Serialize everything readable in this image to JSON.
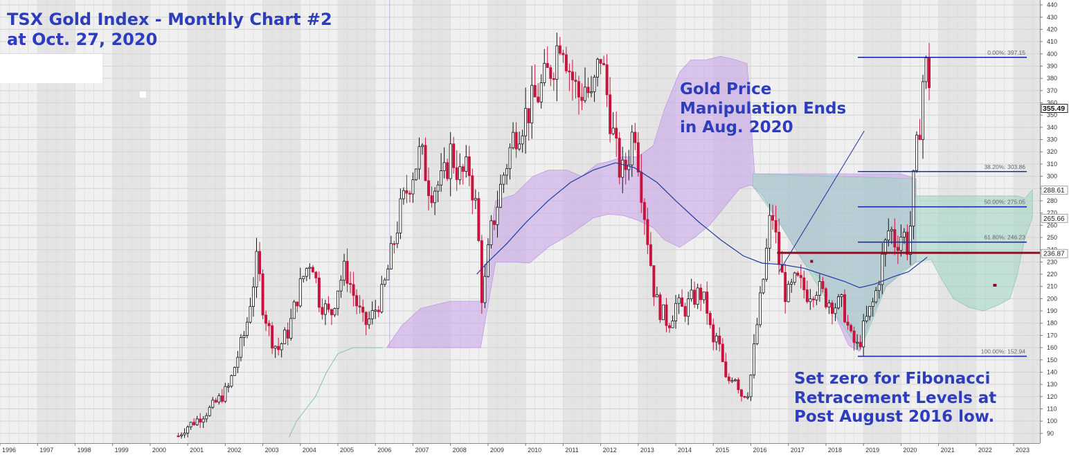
{
  "annotations": {
    "title_lines": [
      "TSX Gold Index - Monthly Chart #2",
      "at Oct. 27, 2020"
    ],
    "gold_lines": [
      "Gold Price",
      "Manipulation Ends",
      "in Aug. 2020"
    ],
    "fib_lines": [
      "Set zero for Fibonacci",
      "Retracement Levels at",
      "Post August 2016 low."
    ]
  },
  "colors": {
    "up": "#111111",
    "down": "#c8133c",
    "cloud_purple": "#c9a9ea",
    "cloud_green": "#9fd4c2",
    "ma": "#1f3aa0",
    "fib": "#1a2ea8",
    "support": "#8b0d1e",
    "annotation": "#2e3dbd"
  },
  "chart_data": {
    "type": "candlestick",
    "title": "TSX Gold Index - Monthly Chart #2 at Oct. 27, 2020",
    "y_axis_side": "right",
    "ylim": [
      82,
      444
    ],
    "y_ticks": [
      90,
      100,
      110,
      120,
      130,
      140,
      150,
      160,
      170,
      180,
      190,
      200,
      210,
      220,
      230,
      240,
      250,
      260,
      270,
      280,
      290,
      300,
      310,
      320,
      330,
      340,
      350,
      360,
      370,
      380,
      390,
      400,
      410,
      420,
      430,
      440
    ],
    "x_axis_range": [
      1996.0,
      2023.7
    ],
    "x_ticks": [
      "1996",
      "1997",
      "1998",
      "1999",
      "2000",
      "2001",
      "2002",
      "2003",
      "2004",
      "2005",
      "2006",
      "2007",
      "2008",
      "2009",
      "2010",
      "2011",
      "2012",
      "2013",
      "2014",
      "2015",
      "2016",
      "2017",
      "2018",
      "2019",
      "2020",
      "2021",
      "2022",
      "2023"
    ],
    "last_price": "355.49",
    "price_labels": [
      {
        "value": 288.61,
        "text": "288.61"
      },
      {
        "value": 265.66,
        "text": "265.66"
      },
      {
        "value": 236.87,
        "text": "236.87"
      }
    ],
    "support_level": 237.5,
    "fibonacci": {
      "x_start": 2018.85,
      "x_end": 2023.35,
      "levels": [
        {
          "value": 397.15,
          "label": "0.00%: 397.15"
        },
        {
          "value": 303.86,
          "label": "38.20%: 303.86"
        },
        {
          "value": 275.05,
          "label": "50.00%: 275.05"
        },
        {
          "value": 246.23,
          "label": "61.80%: 246.23"
        },
        {
          "value": 152.94,
          "label": "100.00%: 152.94"
        }
      ]
    },
    "price_path": [
      [
        2000.75,
        88
      ],
      [
        2000.95,
        95
      ],
      [
        2001.2,
        100
      ],
      [
        2001.6,
        110
      ],
      [
        2001.9,
        120
      ],
      [
        2002.1,
        128
      ],
      [
        2002.3,
        150
      ],
      [
        2002.55,
        175
      ],
      [
        2002.7,
        205
      ],
      [
        2002.85,
        232
      ],
      [
        2003.0,
        195
      ],
      [
        2003.2,
        170
      ],
      [
        2003.4,
        158
      ],
      [
        2003.7,
        175
      ],
      [
        2003.9,
        200
      ],
      [
        2004.1,
        220
      ],
      [
        2004.3,
        235
      ],
      [
        2004.5,
        200
      ],
      [
        2004.8,
        185
      ],
      [
        2005.0,
        210
      ],
      [
        2005.2,
        225
      ],
      [
        2005.45,
        200
      ],
      [
        2005.7,
        178
      ],
      [
        2005.9,
        185
      ],
      [
        2006.2,
        205
      ],
      [
        2006.45,
        240
      ],
      [
        2006.65,
        270
      ],
      [
        2006.95,
        300
      ],
      [
        2007.2,
        320
      ],
      [
        2007.45,
        290
      ],
      [
        2007.8,
        295
      ],
      [
        2008.0,
        320
      ],
      [
        2008.25,
        300
      ],
      [
        2008.5,
        305
      ],
      [
        2008.7,
        270
      ],
      [
        2008.85,
        195
      ],
      [
        2009.05,
        250
      ],
      [
        2009.4,
        300
      ],
      [
        2009.7,
        335
      ],
      [
        2010.0,
        350
      ],
      [
        2010.3,
        365
      ],
      [
        2010.55,
        380
      ],
      [
        2010.75,
        395
      ],
      [
        2010.95,
        420
      ],
      [
        2011.15,
        390
      ],
      [
        2011.4,
        365
      ],
      [
        2011.6,
        375
      ],
      [
        2011.75,
        360
      ],
      [
        2012.0,
        400
      ],
      [
        2012.15,
        370
      ],
      [
        2012.4,
        320
      ],
      [
        2012.55,
        300
      ],
      [
        2012.7,
        310
      ],
      [
        2012.9,
        345
      ],
      [
        2013.05,
        300
      ],
      [
        2013.25,
        250
      ],
      [
        2013.45,
        200
      ],
      [
        2013.6,
        190
      ],
      [
        2013.8,
        180
      ],
      [
        2014.0,
        195
      ],
      [
        2014.2,
        190
      ],
      [
        2014.45,
        200
      ],
      [
        2014.65,
        205
      ],
      [
        2014.85,
        190
      ],
      [
        2014.98,
        160
      ],
      [
        2015.1,
        170
      ],
      [
        2015.35,
        130
      ],
      [
        2015.55,
        140
      ],
      [
        2015.75,
        122
      ],
      [
        2015.95,
        125
      ],
      [
        2016.15,
        175
      ],
      [
        2016.35,
        220
      ],
      [
        2016.55,
        275
      ],
      [
        2016.75,
        230
      ],
      [
        2016.95,
        200
      ],
      [
        2017.2,
        215
      ],
      [
        2017.5,
        205
      ],
      [
        2017.75,
        210
      ],
      [
        2018.0,
        200
      ],
      [
        2018.25,
        195
      ],
      [
        2018.45,
        195
      ],
      [
        2018.65,
        168
      ],
      [
        2018.85,
        160
      ],
      [
        2019.05,
        180
      ],
      [
        2019.3,
        200
      ],
      [
        2019.5,
        232
      ],
      [
        2019.7,
        260
      ],
      [
        2019.85,
        245
      ],
      [
        2020.05,
        255
      ],
      [
        2020.2,
        240
      ],
      [
        2020.35,
        300
      ],
      [
        2020.5,
        345
      ],
      [
        2020.6,
        385
      ],
      [
        2020.72,
        390
      ],
      [
        2020.82,
        355
      ]
    ],
    "ma_path": [
      [
        2008.7,
        220
      ],
      [
        2009.0,
        230
      ],
      [
        2009.5,
        245
      ],
      [
        2010.0,
        262
      ],
      [
        2010.6,
        280
      ],
      [
        2011.2,
        295
      ],
      [
        2011.8,
        305
      ],
      [
        2012.4,
        311
      ],
      [
        2012.9,
        307
      ],
      [
        2013.5,
        295
      ],
      [
        2014.0,
        280
      ],
      [
        2014.6,
        263
      ],
      [
        2015.2,
        248
      ],
      [
        2015.8,
        235
      ],
      [
        2016.3,
        229
      ],
      [
        2016.8,
        228
      ],
      [
        2017.4,
        225
      ],
      [
        2017.9,
        220
      ],
      [
        2018.5,
        214
      ],
      [
        2018.9,
        209
      ],
      [
        2019.3,
        212
      ],
      [
        2019.8,
        218
      ],
      [
        2020.2,
        222
      ],
      [
        2020.7,
        234
      ]
    ],
    "cloud_a": [
      [
        2006.3,
        160
      ],
      [
        2006.7,
        178
      ],
      [
        2007.2,
        192
      ],
      [
        2008.0,
        198
      ],
      [
        2008.8,
        198
      ],
      [
        2009.2,
        280
      ],
      [
        2009.7,
        285
      ],
      [
        2010.2,
        300
      ],
      [
        2010.6,
        305
      ],
      [
        2011.1,
        305
      ],
      [
        2011.5,
        300
      ],
      [
        2011.9,
        310
      ],
      [
        2012.2,
        312
      ],
      [
        2012.6,
        316
      ],
      [
        2013.0,
        316
      ],
      [
        2013.4,
        325
      ],
      [
        2013.7,
        355
      ],
      [
        2014.1,
        385
      ],
      [
        2014.4,
        395
      ],
      [
        2014.8,
        395
      ],
      [
        2015.2,
        398
      ],
      [
        2015.6,
        395
      ],
      [
        2015.9,
        392
      ],
      [
        2016.1,
        302
      ],
      [
        2017.0,
        302
      ],
      [
        2018.0,
        302
      ],
      [
        2019.0,
        302
      ],
      [
        2020.0,
        302
      ],
      [
        2020.4,
        298
      ]
    ],
    "cloud_b": [
      [
        2006.3,
        160
      ],
      [
        2007.0,
        160
      ],
      [
        2008.0,
        160
      ],
      [
        2008.8,
        160
      ],
      [
        2009.2,
        230
      ],
      [
        2009.7,
        230
      ],
      [
        2010.1,
        229
      ],
      [
        2010.6,
        242
      ],
      [
        2011.2,
        253
      ],
      [
        2011.8,
        266
      ],
      [
        2012.2,
        269
      ],
      [
        2012.6,
        268
      ],
      [
        2013.0,
        264
      ],
      [
        2013.4,
        258
      ],
      [
        2013.7,
        248
      ],
      [
        2014.1,
        242
      ],
      [
        2014.5,
        250
      ],
      [
        2014.9,
        260
      ],
      [
        2015.3,
        275
      ],
      [
        2015.7,
        290
      ],
      [
        2016.0,
        293
      ],
      [
        2016.3,
        285
      ],
      [
        2016.7,
        265
      ],
      [
        2017.0,
        250
      ],
      [
        2017.4,
        230
      ],
      [
        2017.9,
        215
      ],
      [
        2018.2,
        190
      ],
      [
        2018.6,
        162
      ],
      [
        2018.9,
        157
      ],
      [
        2019.2,
        185
      ],
      [
        2019.6,
        210
      ],
      [
        2020.0,
        222
      ],
      [
        2020.4,
        230
      ]
    ],
    "cloud_future_a": [
      [
        2020.4,
        284
      ],
      [
        2021.0,
        284
      ],
      [
        2021.5,
        284
      ],
      [
        2021.7,
        284
      ],
      [
        2022.2,
        284
      ],
      [
        2022.8,
        284
      ],
      [
        2023.1,
        284
      ],
      [
        2023.3,
        282
      ],
      [
        2023.5,
        289
      ]
    ],
    "cloud_future_b": [
      [
        2020.4,
        230
      ],
      [
        2020.8,
        232
      ],
      [
        2021.1,
        215
      ],
      [
        2021.4,
        200
      ],
      [
        2021.8,
        193
      ],
      [
        2022.2,
        190
      ],
      [
        2022.6,
        195
      ],
      [
        2022.9,
        200
      ],
      [
        2023.1,
        220
      ],
      [
        2023.3,
        250
      ],
      [
        2023.5,
        266
      ]
    ],
    "lagging_path": [
      [
        2003.7,
        87
      ],
      [
        2003.9,
        100
      ],
      [
        2004.1,
        108
      ],
      [
        2004.4,
        120
      ],
      [
        2004.7,
        140
      ],
      [
        2005.0,
        155
      ],
      [
        2005.4,
        160
      ],
      [
        2006.2,
        160
      ]
    ]
  }
}
